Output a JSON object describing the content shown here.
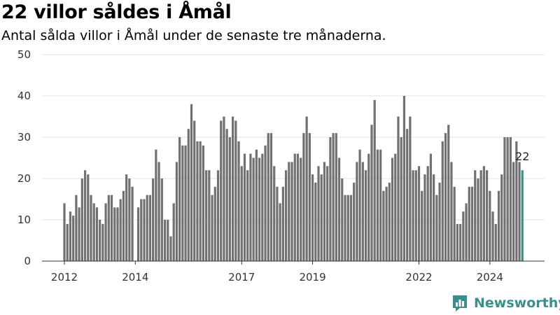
{
  "title": "22 villor såldes i Åmål",
  "subtitle": "Antal sålda villor i Åmål under de senaste tre månaderna.",
  "brand": {
    "name": "Newsworthy",
    "logo_icon": "newsworthy-logo-icon",
    "color": "#3a8f8c"
  },
  "chart_data": {
    "type": "bar",
    "title": "22 villor såldes i Åmål",
    "subtitle": "Antal sålda villor i Åmål under de senaste tre månaderna.",
    "xlabel": "",
    "ylabel": "",
    "ylim": [
      0,
      50
    ],
    "yticks": [
      0,
      10,
      20,
      30,
      40,
      50
    ],
    "grid": true,
    "bar_color": "#717073",
    "highlight_color": "#2f9590",
    "x_start": "2012-01",
    "x_step": "month",
    "xticks": [
      {
        "label": "2012",
        "month": "2012-01"
      },
      {
        "label": "2014",
        "month": "2014-01"
      },
      {
        "label": "2017",
        "month": "2017-01"
      },
      {
        "label": "2019",
        "month": "2019-01"
      },
      {
        "label": "2022",
        "month": "2022-01"
      },
      {
        "label": "2024",
        "month": "2024-01"
      }
    ],
    "values": [
      14,
      9,
      12,
      11,
      16,
      13,
      20,
      22,
      21,
      16,
      14,
      13,
      10,
      9,
      14,
      16,
      16,
      13,
      13,
      15,
      17,
      21,
      20,
      18,
      0,
      13,
      15,
      15,
      16,
      16,
      20,
      27,
      24,
      20,
      10,
      10,
      6,
      14,
      24,
      30,
      28,
      28,
      32,
      38,
      34,
      29,
      29,
      28,
      22,
      22,
      16,
      18,
      22,
      34,
      35,
      32,
      30,
      35,
      34,
      29,
      23,
      26,
      22,
      26,
      25,
      27,
      25,
      26,
      28,
      31,
      31,
      23,
      18,
      14,
      18,
      22,
      24,
      24,
      26,
      26,
      25,
      31,
      35,
      31,
      21,
      19,
      23,
      21,
      24,
      23,
      30,
      31,
      31,
      25,
      20,
      16,
      16,
      16,
      19,
      24,
      27,
      24,
      22,
      26,
      33,
      39,
      27,
      27,
      17,
      18,
      19,
      25,
      26,
      35,
      30,
      40,
      32,
      35,
      22,
      22,
      23,
      17,
      21,
      23,
      26,
      21,
      16,
      19,
      29,
      31,
      33,
      24,
      18,
      9,
      9,
      12,
      14,
      18,
      18,
      22,
      20,
      22,
      23,
      22,
      17,
      12,
      9,
      17,
      21,
      30,
      30,
      30,
      24,
      29,
      24,
      22
    ],
    "highlight": {
      "index": 155,
      "value": 22,
      "label": "22"
    }
  }
}
